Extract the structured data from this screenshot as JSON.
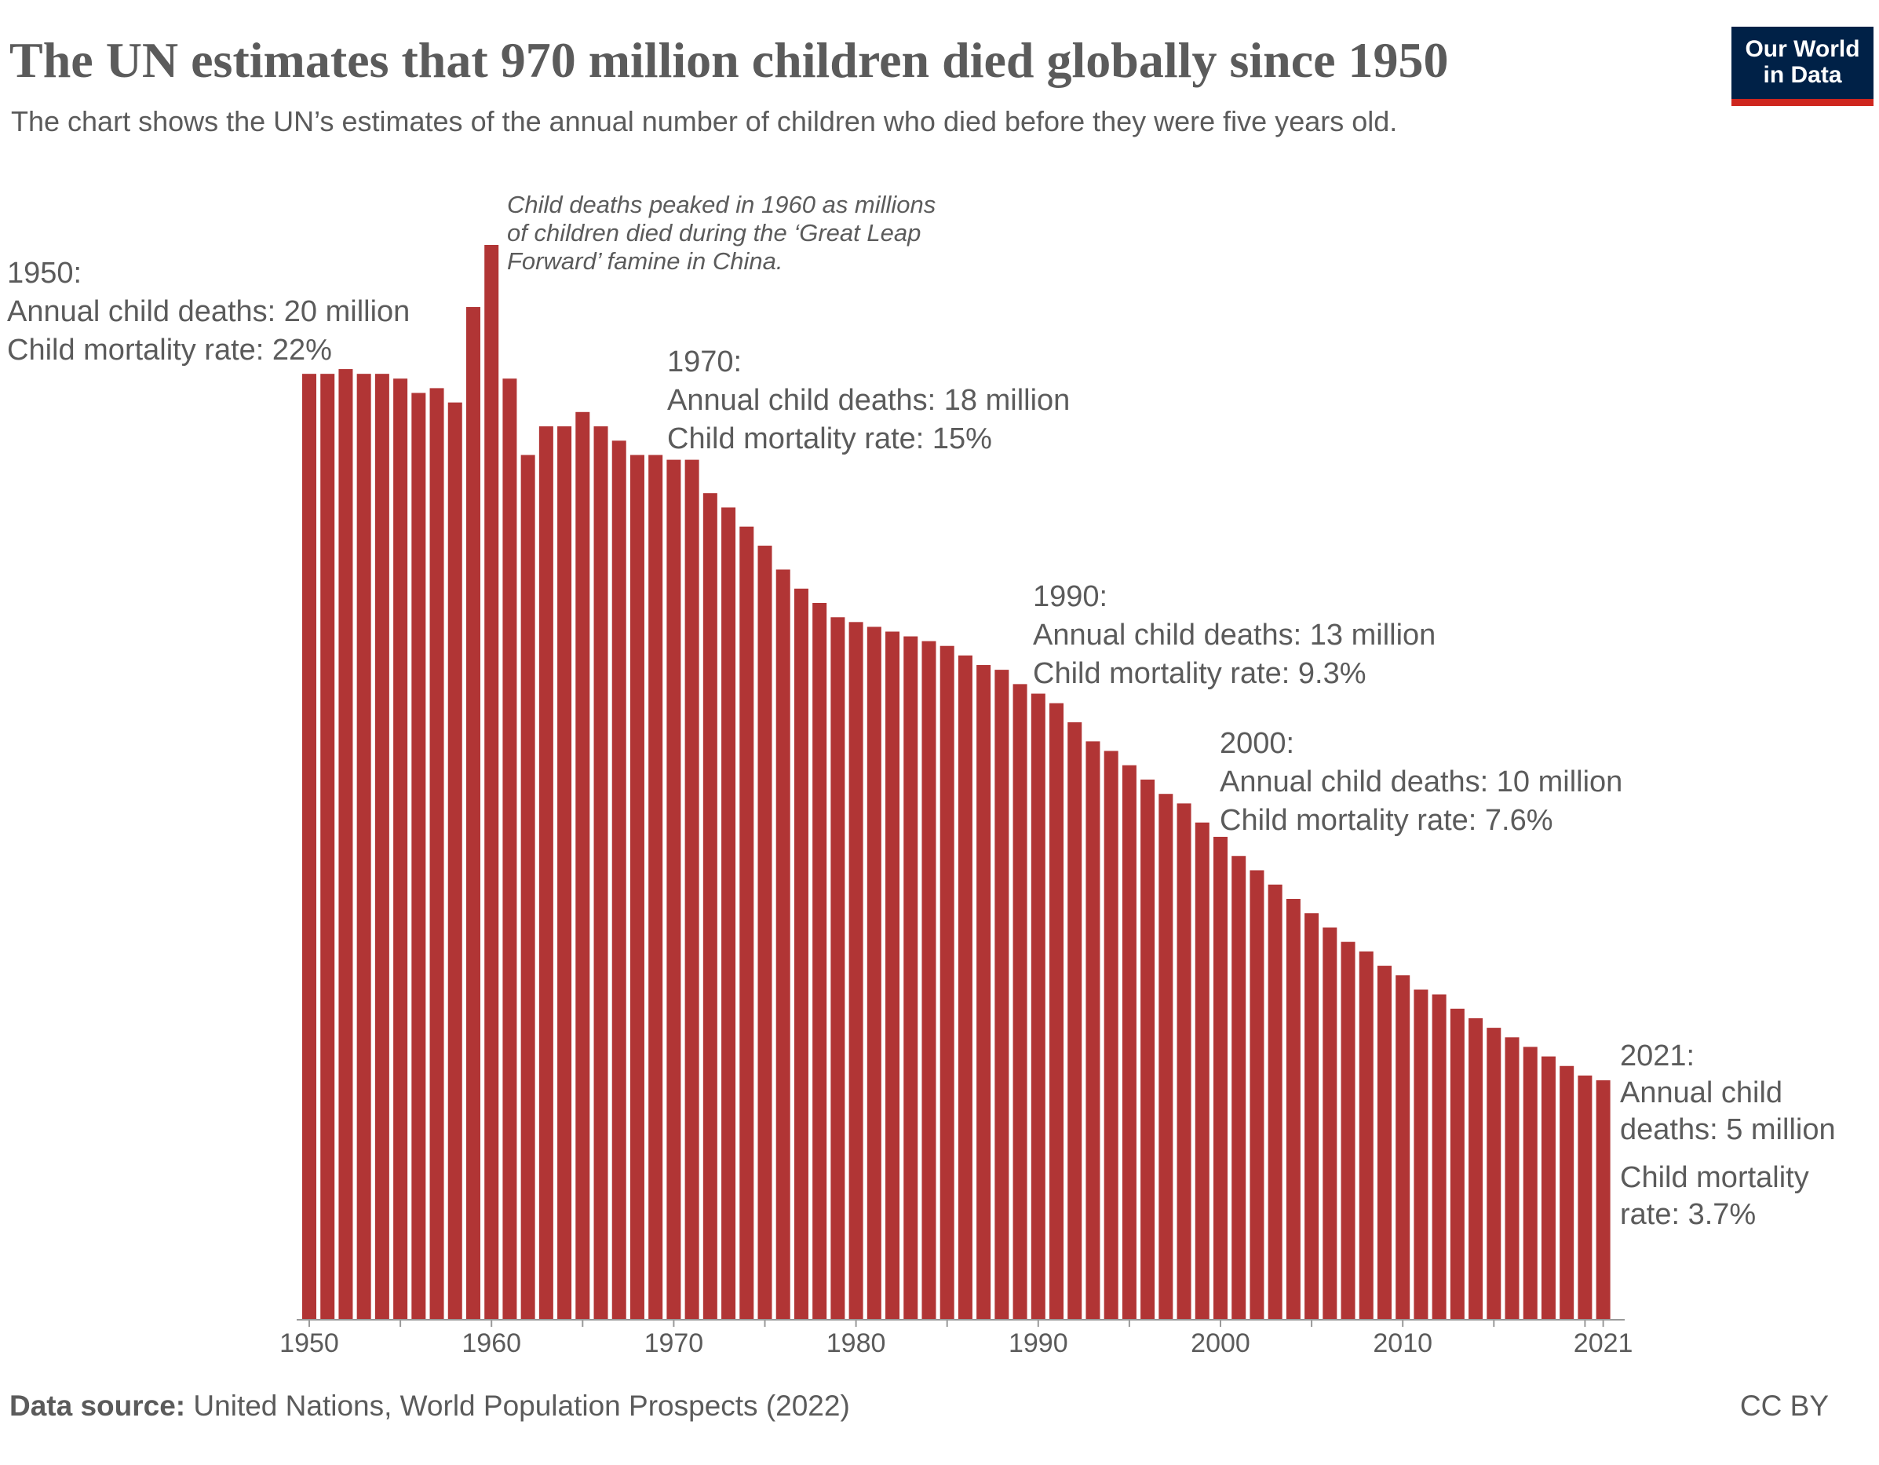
{
  "header": {
    "title": "The UN estimates that 970 million children died globally since 1950",
    "subtitle": "The chart shows the UN’s estimates of the annual number of children who died before they were five years old.",
    "logo_line1": "Our World",
    "logo_line2": "in Data"
  },
  "annotations": {
    "peak_note": [
      "Child deaths peaked in 1960 as millions",
      "of children died during the ‘Great Leap",
      "Forward’ famine in China."
    ],
    "y1950": [
      "1950:",
      "Annual child deaths: 20 million",
      "Child mortality rate: 22%"
    ],
    "y1970": [
      "1970:",
      "Annual child deaths: 18 million",
      "Child mortality rate: 15%"
    ],
    "y1990": [
      "1990:",
      "Annual child deaths: 13 million",
      "Child mortality rate: 9.3%"
    ],
    "y2000": [
      "2000:",
      "Annual child deaths: 10 million",
      "Child mortality rate: 7.6%"
    ],
    "y2021": [
      "2021:",
      "Annual child",
      "deaths: 5 million",
      "Child mortality",
      "rate: 3.7%"
    ]
  },
  "footer": {
    "source_label": "Data source:",
    "source_text": "United Nations, World Population Prospects (2022)",
    "license": "CC BY"
  },
  "chart_data": {
    "type": "bar",
    "title": "The UN estimates that 970 million children died globally since 1950",
    "xlabel": "",
    "ylabel": "",
    "unit": "million child deaths",
    "color": "#b13535",
    "grid": false,
    "ylim": [
      0,
      23
    ],
    "x_tick_labels": [
      "1950",
      "1960",
      "1970",
      "1980",
      "1990",
      "2000",
      "2010",
      "2021"
    ],
    "categories": [
      1950,
      1951,
      1952,
      1953,
      1954,
      1955,
      1956,
      1957,
      1958,
      1959,
      1960,
      1961,
      1962,
      1963,
      1964,
      1965,
      1966,
      1967,
      1968,
      1969,
      1970,
      1971,
      1972,
      1973,
      1974,
      1975,
      1976,
      1977,
      1978,
      1979,
      1980,
      1981,
      1982,
      1983,
      1984,
      1985,
      1986,
      1987,
      1988,
      1989,
      1990,
      1991,
      1992,
      1993,
      1994,
      1995,
      1996,
      1997,
      1998,
      1999,
      2000,
      2001,
      2002,
      2003,
      2004,
      2005,
      2006,
      2007,
      2008,
      2009,
      2010,
      2011,
      2012,
      2013,
      2014,
      2015,
      2016,
      2017,
      2018,
      2019,
      2020,
      2021
    ],
    "values": [
      19.8,
      19.8,
      19.9,
      19.8,
      19.8,
      19.7,
      19.4,
      19.5,
      19.2,
      21.2,
      22.5,
      19.7,
      18.1,
      18.7,
      18.7,
      19.0,
      18.7,
      18.4,
      18.1,
      18.1,
      18.0,
      18.0,
      17.3,
      17.0,
      16.6,
      16.2,
      15.7,
      15.3,
      15.0,
      14.7,
      14.6,
      14.5,
      14.4,
      14.3,
      14.2,
      14.1,
      13.9,
      13.7,
      13.6,
      13.3,
      13.1,
      12.9,
      12.5,
      12.1,
      11.9,
      11.6,
      11.3,
      11.0,
      10.8,
      10.4,
      10.1,
      9.7,
      9.4,
      9.1,
      8.8,
      8.5,
      8.2,
      7.9,
      7.7,
      7.4,
      7.2,
      6.9,
      6.8,
      6.5,
      6.3,
      6.1,
      5.9,
      5.7,
      5.5,
      5.3,
      5.1,
      5.0
    ]
  }
}
